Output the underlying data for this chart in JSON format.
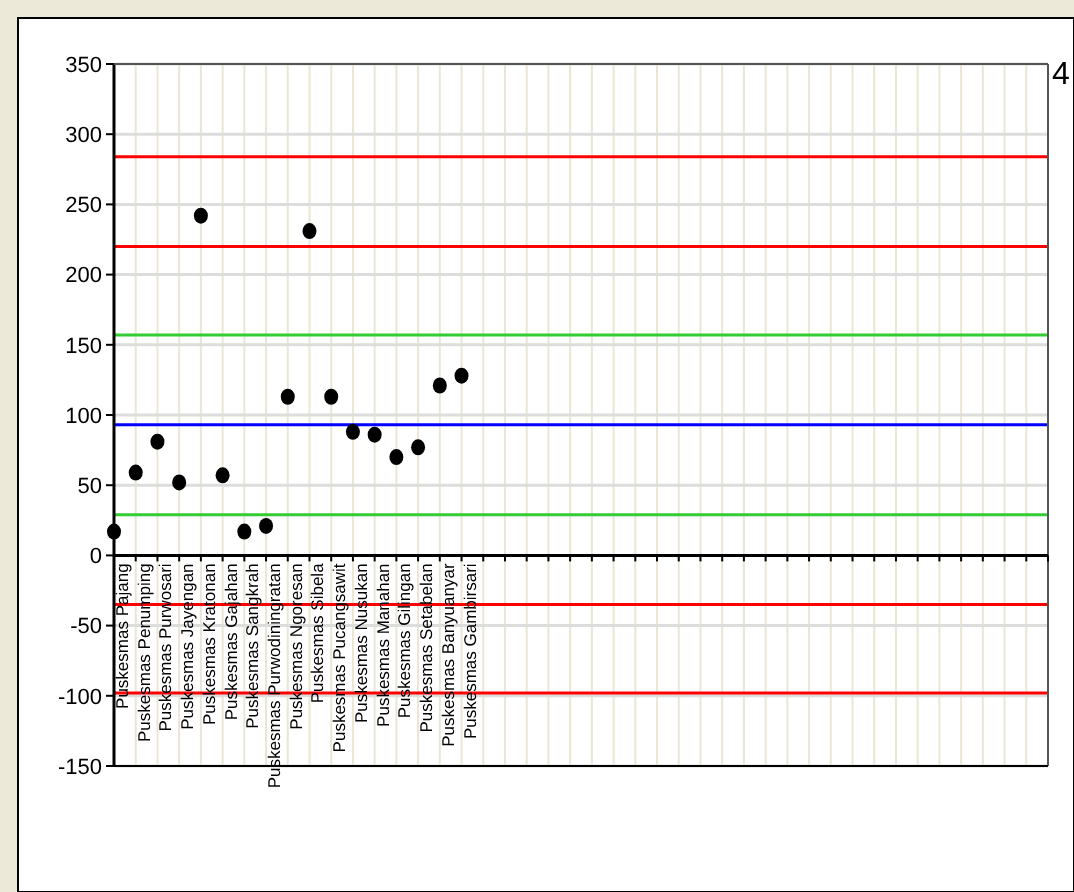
{
  "chart_data": {
    "type": "scatter",
    "categories": [
      "Puskesmas Pajang",
      "Puskesmas Penumping",
      "Puskesmas Purwosari",
      "Puskesmas Jayengan",
      "Puskesmas Kratonan",
      "Puskesmas Gajahan",
      "Puskesmas Sangkrah",
      "Puskesmas Purwodiningratan",
      "Puskesmas Ngoresan",
      "Puskesmas Sibela",
      "Puskesmas Pucangsawit",
      "Puskesmas Nusukan",
      "Puskesmas Manahan",
      "Puskesmas Gilingan",
      "Puskesmas Setabelan",
      "Puskesmas Banyuanyar",
      "Puskesmas Gambirsari",
      null,
      null,
      null,
      null,
      null,
      null,
      null,
      null,
      null,
      null,
      null,
      null,
      null,
      null,
      null,
      null,
      null,
      null,
      null,
      null,
      null,
      null,
      null,
      null,
      null,
      null,
      null
    ],
    "values": [
      17,
      59,
      81,
      52,
      242,
      57,
      17,
      21,
      113,
      231,
      113,
      88,
      86,
      70,
      77,
      121,
      128,
      null,
      null,
      null,
      null,
      null,
      null,
      null,
      null,
      null,
      null,
      null,
      null,
      null,
      null,
      null,
      null,
      null,
      null,
      null,
      null,
      null,
      null,
      null,
      null,
      null,
      null,
      null
    ],
    "color": "#000000",
    "marker": "circle",
    "grid": true,
    "ylim": [
      -150,
      350
    ],
    "yticks": [
      -150,
      -100,
      -50,
      0,
      50,
      100,
      150,
      200,
      250,
      300,
      350
    ],
    "ref_lines": [
      {
        "axis": "y",
        "value": 284,
        "color": "#ff0000"
      },
      {
        "axis": "y",
        "value": 220,
        "color": "#ff0000"
      },
      {
        "axis": "y",
        "value": 157,
        "color": "#33cc33"
      },
      {
        "axis": "y",
        "value": 93,
        "color": "#0000ff"
      },
      {
        "axis": "y",
        "value": 29,
        "color": "#33cc33"
      },
      {
        "axis": "y",
        "value": -35,
        "color": "#ff0000"
      },
      {
        "axis": "y",
        "value": -98,
        "color": "#ff0000"
      }
    ],
    "annotations": [
      "4"
    ]
  }
}
